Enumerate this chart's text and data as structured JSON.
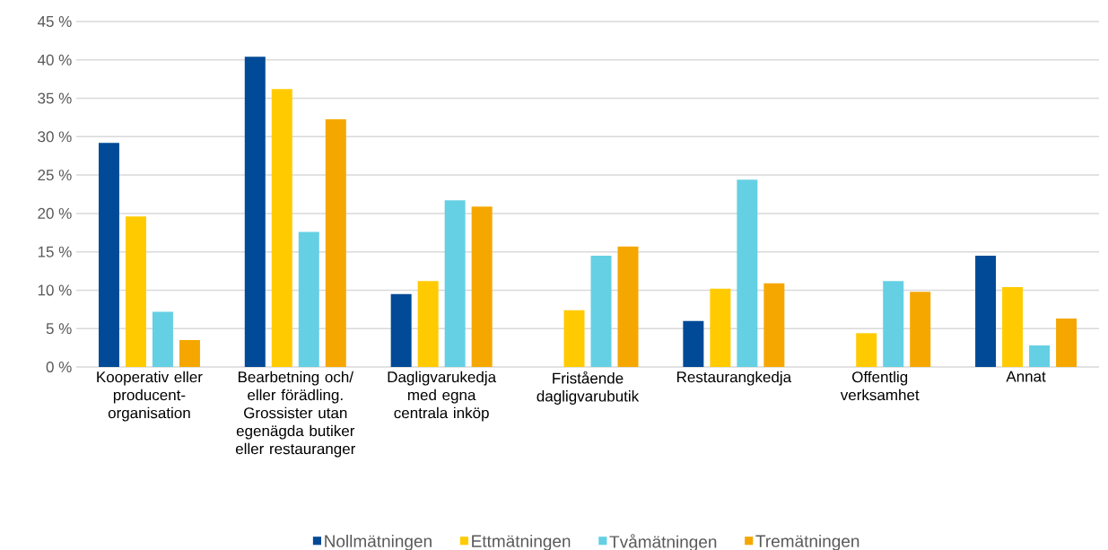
{
  "chart_data": {
    "type": "bar",
    "categories": [
      "Kooperativ eller producent-organisation",
      "Bearbetning och/ eller förädling. Grossister utan egenägda butiker eller restauranger",
      "Dagligvarukedja med egna centrala inköp",
      "Fristående dagligvarubutik",
      "Restaurangkedja",
      "Offentlig verksamhet",
      "Annat"
    ],
    "series": [
      {
        "name": "Nollmätningen",
        "color": "#004a97",
        "values": [
          29.2,
          40.4,
          9.5,
          null,
          6.0,
          null,
          14.5
        ]
      },
      {
        "name": "Ettmätningen",
        "color": "#ffcb00",
        "values": [
          19.6,
          36.2,
          11.2,
          7.4,
          10.2,
          4.4,
          10.4
        ]
      },
      {
        "name": "Tvåmätningen",
        "color": "#65d0e3",
        "values": [
          7.2,
          17.6,
          21.7,
          14.5,
          24.4,
          11.2,
          2.8
        ]
      },
      {
        "name": "Tremätningen",
        "color": "#f5a700",
        "values": [
          3.5,
          32.3,
          20.9,
          15.7,
          10.9,
          9.8,
          6.3
        ]
      }
    ],
    "ylim": [
      0,
      45
    ],
    "yticks": [
      {
        "value": 0,
        "label": "0 %"
      },
      {
        "value": 5,
        "label": "5 %"
      },
      {
        "value": 10,
        "label": "10 %"
      },
      {
        "value": 15,
        "label": "15 %"
      },
      {
        "value": 20,
        "label": "20 %"
      },
      {
        "value": 25,
        "label": "25 %"
      },
      {
        "value": 30,
        "label": "30 %"
      },
      {
        "value": 35,
        "label": "35 %"
      },
      {
        "value": 40,
        "label": "40 %"
      },
      {
        "value": 45,
        "label": "45 %"
      }
    ],
    "grid": "y",
    "legend": "bottom"
  }
}
